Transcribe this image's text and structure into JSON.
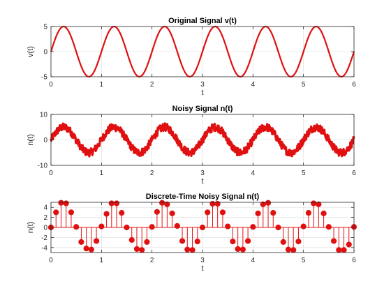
{
  "colors": {
    "series": "#e01010",
    "axis": "#262626",
    "grid": "#dcdcdc",
    "background": "#ffffff"
  },
  "chart_data": [
    {
      "type": "line",
      "title": "Original Signal v(t)",
      "xlabel": "t",
      "ylabel": "v(t)",
      "xlim": [
        0,
        6
      ],
      "ylim": [
        -5,
        5
      ],
      "xticks": [
        0,
        1,
        2,
        3,
        4,
        5,
        6
      ],
      "yticks": [
        -5,
        0,
        5
      ],
      "grid": true,
      "signal": {
        "amplitude": 5,
        "frequency_hz": 1,
        "phase": 0
      },
      "series": [
        {
          "x": [
            0,
            0.125,
            0.25,
            0.375,
            0.5,
            0.625,
            0.75,
            0.875,
            1,
            1.125,
            1.25,
            1.375,
            1.5,
            1.625,
            1.75,
            1.875,
            2,
            2.125,
            2.25,
            2.375,
            2.5,
            2.625,
            2.75,
            2.875,
            3,
            3.125,
            3.25,
            3.375,
            3.5,
            3.625,
            3.75,
            3.875,
            4,
            4.125,
            4.25,
            4.375,
            4.5,
            4.625,
            4.75,
            4.875,
            5,
            5.125,
            5.25,
            5.375,
            5.5,
            5.625,
            5.75,
            5.875,
            6
          ],
          "values": [
            0,
            3.54,
            5,
            3.54,
            0,
            -3.54,
            -5,
            -3.54,
            0,
            3.54,
            5,
            3.54,
            0,
            -3.54,
            -5,
            -3.54,
            0,
            3.54,
            5,
            3.54,
            0,
            -3.54,
            -5,
            -3.54,
            0,
            3.54,
            5,
            3.54,
            0,
            -3.54,
            -5,
            -3.54,
            0,
            3.54,
            5,
            3.54,
            0,
            -3.54,
            -5,
            -3.54,
            0,
            3.54,
            5,
            3.54,
            0,
            -3.54,
            -5,
            -3.54,
            0
          ]
        }
      ]
    },
    {
      "type": "line",
      "title": "Noisy Signal n(t)",
      "xlabel": "t",
      "ylabel": "n(t)",
      "xlim": [
        0,
        6
      ],
      "ylim": [
        -10,
        10
      ],
      "xticks": [
        0,
        1,
        2,
        3,
        4,
        5,
        6
      ],
      "yticks": [
        -10,
        0,
        10
      ],
      "grid": true,
      "signal": {
        "amplitude": 5,
        "frequency_hz": 1,
        "noise_amplitude": 1.5
      },
      "series": [
        {
          "x": [
            0,
            0.25,
            0.5,
            0.75,
            1,
            1.25,
            1.5,
            1.75,
            2,
            2.25,
            2.5,
            2.75,
            3,
            3.25,
            3.5,
            3.75,
            4,
            4.25,
            4.5,
            4.75,
            5,
            5.25,
            5.5,
            5.75,
            6
          ],
          "values": [
            0,
            5,
            0,
            -5,
            0,
            5,
            0,
            -5,
            0,
            5,
            0,
            -5,
            0,
            5,
            0,
            -5,
            0,
            5,
            0,
            -5,
            0,
            5,
            0,
            -5,
            0
          ]
        }
      ]
    },
    {
      "type": "stem",
      "title": "Discrete-Time Noisy Signal n(t)",
      "xlabel": "t",
      "ylabel": "n(t)",
      "xlim": [
        0,
        6
      ],
      "ylim": [
        -5,
        5
      ],
      "xticks": [
        0,
        1,
        2,
        3,
        4,
        5,
        6
      ],
      "yticks": [
        -4,
        -2,
        0,
        2,
        4
      ],
      "grid": true,
      "series": [
        {
          "x": [
            0,
            0.1,
            0.2,
            0.3,
            0.4,
            0.5,
            0.6,
            0.7,
            0.8,
            0.9,
            1,
            1.1,
            1.2,
            1.3,
            1.4,
            1.5,
            1.6,
            1.7,
            1.8,
            1.9,
            2,
            2.1,
            2.2,
            2.3,
            2.4,
            2.5,
            2.6,
            2.7,
            2.8,
            2.9,
            3,
            3.1,
            3.2,
            3.3,
            3.4,
            3.5,
            3.6,
            3.7,
            3.8,
            3.9,
            4,
            4.1,
            4.2,
            4.3,
            4.4,
            4.5,
            4.6,
            4.7,
            4.8,
            4.9,
            5,
            5.1,
            5.2,
            5.3,
            5.4,
            5.5,
            5.6,
            5.7,
            5.8,
            5.9,
            6
          ],
          "values": [
            0,
            3,
            4.9,
            4.8,
            3,
            0.1,
            -2.9,
            -4.2,
            -4.4,
            -2.7,
            0.2,
            2.7,
            4.8,
            4.8,
            2.9,
            0,
            -2.5,
            -4.3,
            -4.5,
            -2.9,
            0.1,
            3.1,
            4.9,
            4.6,
            2.8,
            0.3,
            -2.7,
            -4.4,
            -4.5,
            -2.8,
            0,
            3,
            4.7,
            4.7,
            3,
            0.2,
            -2.8,
            -4.3,
            -4.4,
            -2.7,
            0.1,
            2.8,
            4.6,
            4.9,
            2.9,
            0,
            -2.9,
            -4.4,
            -4.5,
            -2.8,
            0.2,
            2.9,
            4.8,
            4.6,
            2.8,
            0.1,
            -2.7,
            -4.5,
            -4.5,
            -3.4,
            0.1
          ]
        }
      ]
    }
  ]
}
